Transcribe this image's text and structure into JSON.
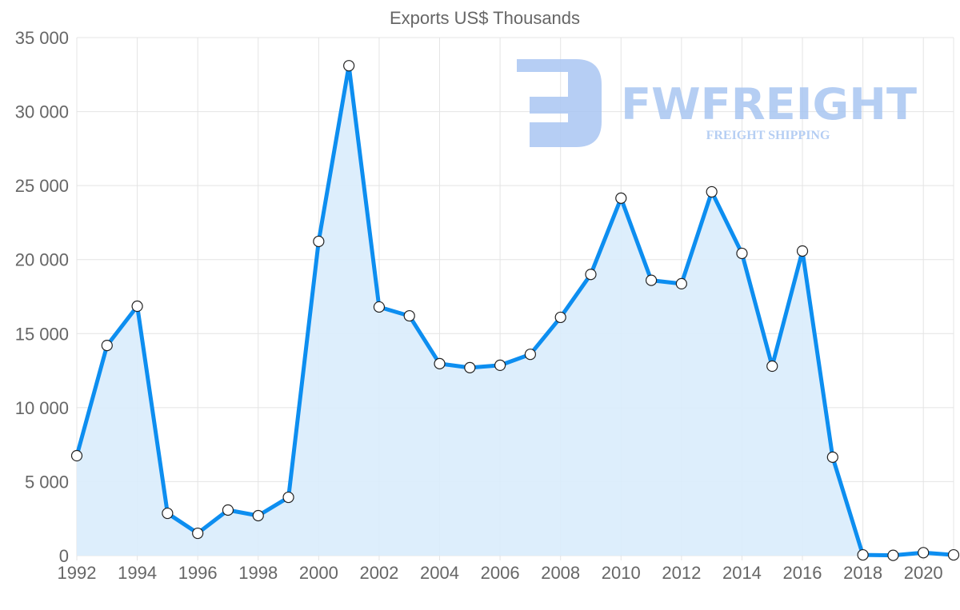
{
  "chart_data": {
    "type": "area",
    "title": "Exports US$ Thousands",
    "xlabel": "",
    "ylabel": "",
    "x": [
      1992,
      1993,
      1994,
      1995,
      1996,
      1997,
      1998,
      1999,
      2000,
      2001,
      2002,
      2003,
      2004,
      2005,
      2006,
      2007,
      2008,
      2009,
      2010,
      2011,
      2012,
      2013,
      2014,
      2015,
      2016,
      2017,
      2018,
      2019,
      2020,
      2021
    ],
    "series": [
      {
        "name": "Exports US$ Thousands",
        "values": [
          6750,
          14200,
          16850,
          2860,
          1510,
          3080,
          2700,
          3940,
          21230,
          33100,
          16800,
          16200,
          12970,
          12700,
          12860,
          13600,
          16100,
          19000,
          24150,
          18600,
          18370,
          24580,
          20420,
          12800,
          20580,
          6650,
          50,
          20,
          200,
          50
        ]
      }
    ],
    "xlim": [
      1992,
      2021
    ],
    "ylim": [
      0,
      35000
    ],
    "yticks": [
      "0",
      "5 000",
      "10 000",
      "15 000",
      "20 000",
      "25 000",
      "30 000",
      "35 000"
    ],
    "xticks": [
      "1992",
      "1994",
      "1996",
      "1998",
      "2000",
      "2002",
      "2004",
      "2006",
      "2008",
      "2010",
      "2012",
      "2014",
      "2016",
      "2018",
      "2020"
    ],
    "grid": true,
    "legend": "none",
    "line_color": "#0d8ef0",
    "fill_color": "#d9ecfc",
    "watermark": {
      "brand": "FWFREIGHT",
      "tagline": "FREIGHT SHIPPING",
      "color": "#a9c6f2"
    }
  }
}
